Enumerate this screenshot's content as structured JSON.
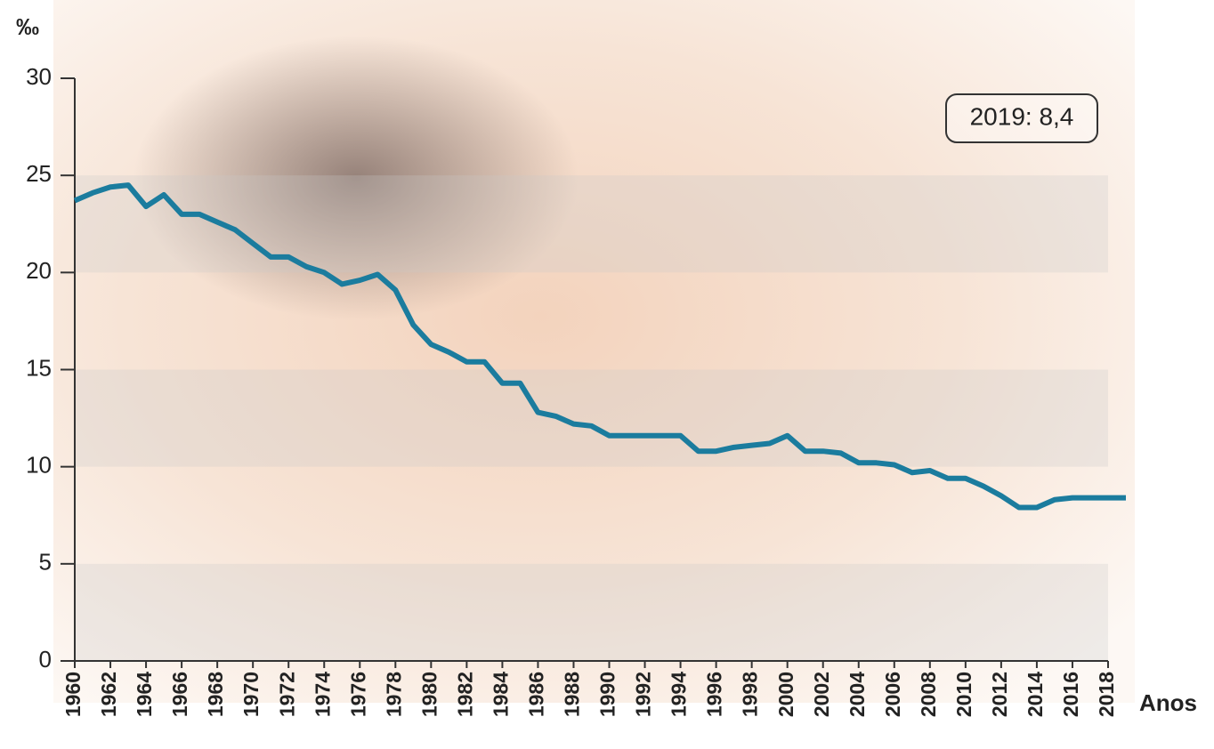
{
  "chart_data": {
    "type": "line",
    "y_label": "‰",
    "x_label": "Anos",
    "annotation": "2019: 8,4",
    "x": [
      1960,
      1961,
      1962,
      1963,
      1964,
      1965,
      1966,
      1967,
      1968,
      1969,
      1970,
      1971,
      1972,
      1973,
      1974,
      1975,
      1976,
      1977,
      1978,
      1979,
      1980,
      1981,
      1982,
      1983,
      1984,
      1985,
      1986,
      1987,
      1988,
      1989,
      1990,
      1991,
      1992,
      1993,
      1994,
      1995,
      1996,
      1997,
      1998,
      1999,
      2000,
      2001,
      2002,
      2003,
      2004,
      2005,
      2006,
      2007,
      2008,
      2009,
      2010,
      2011,
      2012,
      2013,
      2014,
      2015,
      2016,
      2017,
      2018,
      2019
    ],
    "series": [
      {
        "color": "#1b7c9e",
        "values": [
          23.7,
          24.1,
          24.4,
          24.5,
          23.4,
          24.0,
          23.0,
          23.0,
          22.6,
          22.2,
          21.5,
          20.8,
          20.8,
          20.3,
          20.0,
          19.4,
          19.6,
          19.9,
          19.1,
          17.3,
          16.3,
          15.9,
          15.4,
          15.4,
          14.3,
          14.3,
          12.8,
          12.6,
          12.2,
          12.1,
          11.6,
          11.6,
          11.6,
          11.6,
          11.6,
          10.8,
          10.8,
          11.0,
          11.1,
          11.2,
          11.6,
          10.8,
          10.8,
          10.7,
          10.2,
          10.2,
          10.1,
          9.7,
          9.8,
          9.4,
          9.4,
          9.0,
          8.5,
          7.9,
          7.9,
          8.3,
          8.4,
          8.4,
          8.4,
          8.4
        ]
      }
    ],
    "xlim": [
      1960,
      2019
    ],
    "xticks": [
      1960,
      1962,
      1964,
      1966,
      1968,
      1970,
      1972,
      1974,
      1976,
      1978,
      1980,
      1982,
      1984,
      1986,
      1988,
      1990,
      1992,
      1994,
      1996,
      1998,
      2000,
      2002,
      2004,
      2006,
      2008,
      2010,
      2012,
      2014,
      2016,
      2018
    ],
    "ylim": [
      0,
      30
    ],
    "yticks": [
      0,
      5,
      10,
      15,
      20,
      25,
      30
    ],
    "grid": "bands"
  }
}
